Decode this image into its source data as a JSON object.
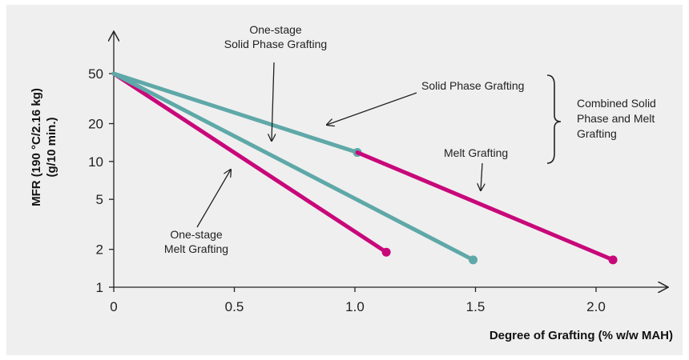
{
  "chart_data": {
    "type": "line",
    "xlabel": "Degree of Grafting (% w/w MAH)",
    "ylabel": [
      "MFR (190 °C/2.16 kg)",
      "(g/10 min.)"
    ],
    "yscale": "log",
    "xlim": [
      0,
      2.3
    ],
    "ylim": [
      1,
      50
    ],
    "x_ticks": [
      "0",
      "0.5",
      "1.0",
      "1.5",
      "2.0"
    ],
    "x_tick_values": [
      0,
      0.5,
      1.0,
      1.5,
      2.0
    ],
    "y_ticks": [
      "50",
      "20",
      "10",
      "5",
      "2",
      "1"
    ],
    "y_tick_values": [
      50,
      20,
      10,
      5,
      2,
      1
    ],
    "colors": {
      "melt": "#c8087a",
      "solid": "#5fa8a8"
    },
    "series": [
      {
        "key": "one-stage-melt",
        "color": "melt",
        "points": [
          [
            0,
            50
          ],
          [
            1.13,
            1.9
          ]
        ]
      },
      {
        "key": "one-stage-solid",
        "color": "solid",
        "points": [
          [
            0,
            50
          ],
          [
            1.49,
            1.65
          ]
        ]
      },
      {
        "key": "combined-solid",
        "color": "solid",
        "points": [
          [
            0,
            50
          ],
          [
            1.01,
            11.8
          ]
        ]
      },
      {
        "key": "combined-melt",
        "color": "melt",
        "points": [
          [
            1.01,
            11.8
          ],
          [
            2.07,
            1.65
          ]
        ]
      }
    ],
    "annotations": {
      "one_stage_solid": [
        "One-stage",
        "Solid Phase Grafting"
      ],
      "solid_phase": "Solid Phase Grafting",
      "melt": "Melt Grafting",
      "combined": [
        "Combined Solid",
        "Phase and Melt",
        "Grafting"
      ],
      "one_stage_melt": [
        "One-stage",
        "Melt Grafting"
      ]
    }
  }
}
